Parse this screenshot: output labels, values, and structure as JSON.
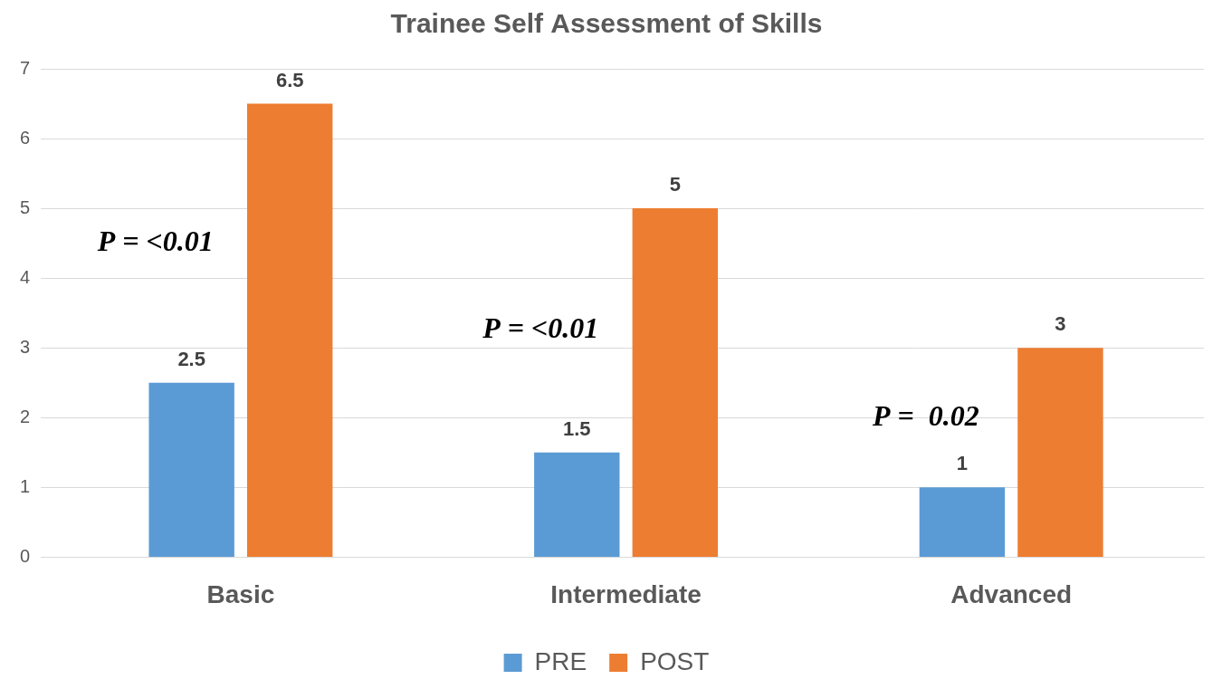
{
  "chart_data": {
    "type": "bar",
    "title": "Trainee Self Assessment of Skills",
    "categories": [
      "Basic",
      "Intermediate",
      "Advanced"
    ],
    "series": [
      {
        "name": "PRE",
        "color": "#5b9bd5",
        "values": [
          2.5,
          1.5,
          1
        ]
      },
      {
        "name": "POST",
        "color": "#ed7d31",
        "values": [
          6.5,
          5,
          3
        ]
      }
    ],
    "ylim": [
      0,
      7
    ],
    "yticks": [
      0,
      1,
      2,
      3,
      4,
      5,
      6,
      7
    ],
    "grid": true,
    "legend": "bottom",
    "data_labels": true,
    "annotations": [
      {
        "category": "Basic",
        "text": "P = <0.01"
      },
      {
        "category": "Intermediate",
        "text": "P = <0.01"
      },
      {
        "category": "Advanced",
        "text": "P =  0.02"
      }
    ]
  }
}
